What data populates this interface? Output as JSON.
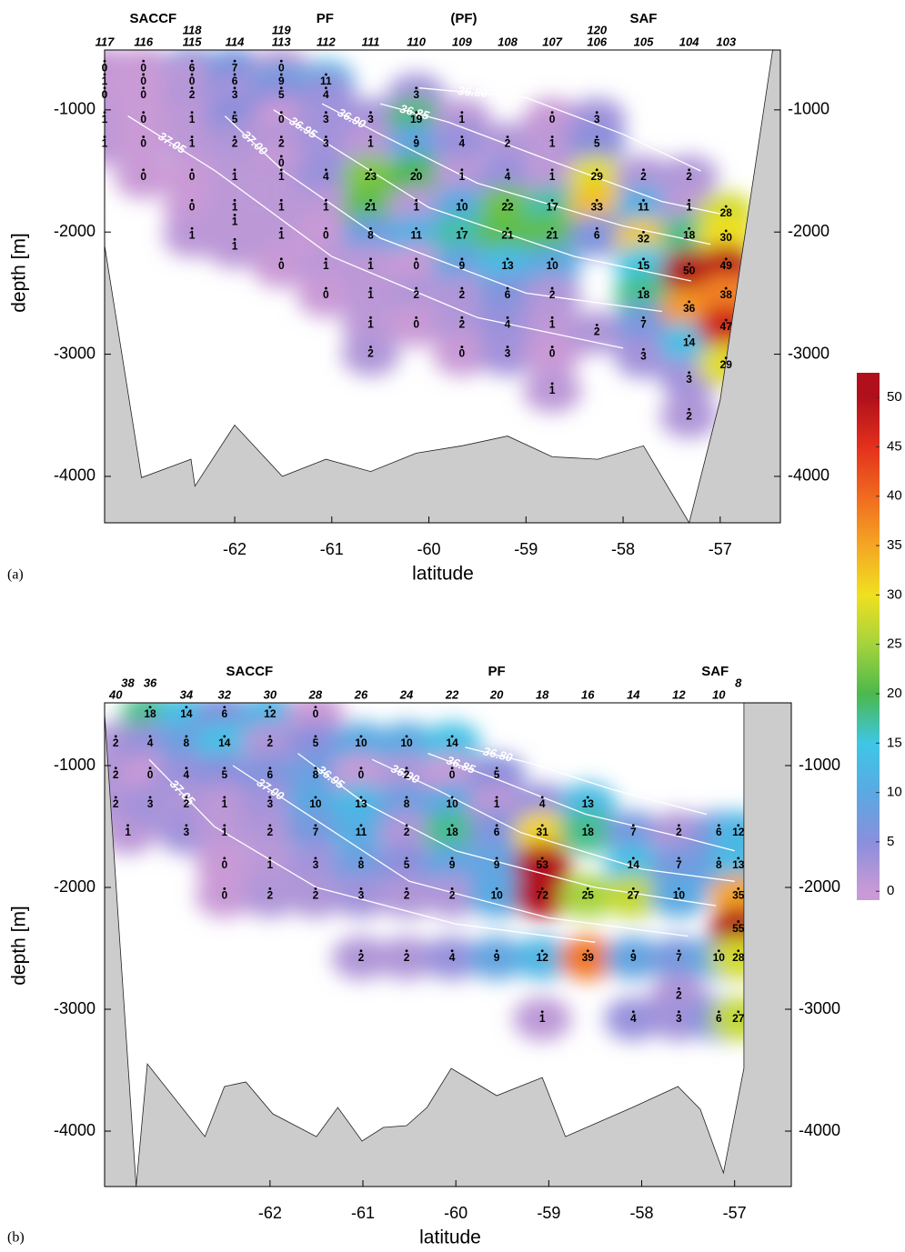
{
  "chart_data": [
    {
      "type": "section",
      "panel_label": "(a)",
      "x_label": "latitude",
      "y_label": "depth [m]",
      "xlim": [
        -63.34,
        -56.38
      ],
      "ylim": [
        -4380,
        -510
      ],
      "xticks": [
        -62,
        -61,
        -60,
        -59,
        -58,
        -57
      ],
      "yticks": [
        -1000,
        -2000,
        -3000,
        -4000
      ],
      "fronts": [
        {
          "label": "SACCF",
          "lat": -62.84
        },
        {
          "label": "PF",
          "lat": -61.07
        },
        {
          "label": "(PF)",
          "lat": -59.64
        },
        {
          "label": "SAF",
          "lat": -57.79
        }
      ],
      "stations": [
        {
          "name": "117",
          "lat": -63.34,
          "depths": [
            -660,
            -770,
            -880,
            -1080,
            -1280
          ],
          "values": [
            0,
            1,
            0,
            1,
            1
          ]
        },
        {
          "name": "116",
          "lat": -62.94,
          "depths": [
            -660,
            -770,
            -880,
            -1080,
            -1280,
            -1550
          ],
          "values": [
            0,
            0,
            0,
            0,
            0,
            0
          ]
        },
        {
          "name": "115",
          "lat": -62.44,
          "depths": [
            -660,
            -770,
            -880,
            -1080,
            -1280,
            -1550,
            -1800,
            -2030
          ],
          "values": [
            6,
            0,
            2,
            1,
            1,
            0,
            0,
            1
          ]
        },
        {
          "name": "118",
          "lat": -62.44
        },
        {
          "name": "114",
          "lat": -62.0,
          "depths": [
            -660,
            -770,
            -880,
            -1080,
            -1280,
            -1550,
            -1800,
            -1920,
            -2120
          ],
          "values": [
            7,
            6,
            3,
            5,
            2,
            1,
            1,
            1,
            1
          ]
        },
        {
          "name": "113",
          "lat": -61.52,
          "depths": [
            -660,
            -770,
            -880,
            -1080,
            -1280,
            -1440,
            -1550,
            -1800,
            -2030,
            -2280
          ],
          "values": [
            0,
            9,
            5,
            0,
            2,
            0,
            1,
            1,
            1,
            0
          ]
        },
        {
          "name": "119",
          "lat": -61.52
        },
        {
          "name": "112",
          "lat": -61.06,
          "depths": [
            -770,
            -880,
            -1080,
            -1280,
            -1550,
            -1800,
            -2030,
            -2280,
            -2520
          ],
          "values": [
            11,
            4,
            3,
            3,
            4,
            1,
            0,
            1,
            0
          ]
        },
        {
          "name": "111",
          "lat": -60.6,
          "depths": [
            -1080,
            -1280,
            -1550,
            -1800,
            -2030,
            -2280,
            -2520,
            -2760,
            -3000
          ],
          "values": [
            3,
            1,
            23,
            21,
            8,
            1,
            1,
            1,
            2
          ]
        },
        {
          "name": "110",
          "lat": -60.13,
          "depths": [
            -880,
            -1080,
            -1280,
            -1550,
            -1800,
            -2030,
            -2280,
            -2520,
            -2760
          ],
          "values": [
            3,
            19,
            9,
            20,
            1,
            11,
            0,
            2,
            0
          ]
        },
        {
          "name": "109",
          "lat": -59.66,
          "depths": [
            -1080,
            -1280,
            -1550,
            -1800,
            -2030,
            -2280,
            -2520,
            -2760,
            -3000
          ],
          "values": [
            1,
            4,
            1,
            10,
            17,
            9,
            2,
            2,
            0
          ]
        },
        {
          "name": "108",
          "lat": -59.19,
          "depths": [
            -1280,
            -1550,
            -1800,
            -2030,
            -2280,
            -2520,
            -2760,
            -3000
          ],
          "values": [
            2,
            4,
            22,
            21,
            13,
            6,
            4,
            3
          ]
        },
        {
          "name": "107",
          "lat": -58.73,
          "depths": [
            -1080,
            -1280,
            -1550,
            -1800,
            -2030,
            -2280,
            -2520,
            -2760,
            -3000,
            -3300
          ],
          "values": [
            0,
            1,
            1,
            17,
            21,
            10,
            2,
            1,
            0,
            1
          ]
        },
        {
          "name": "106",
          "lat": -58.27,
          "depths": [
            -1080,
            -1280,
            -1550,
            -1800,
            -2030,
            -2820
          ],
          "values": [
            3,
            5,
            29,
            33,
            6,
            2
          ]
        },
        {
          "name": "120",
          "lat": -58.27
        },
        {
          "name": "105",
          "lat": -57.79,
          "depths": [
            -1550,
            -1800,
            -2060,
            -2280,
            -2520,
            -2760,
            -3020
          ],
          "values": [
            2,
            11,
            32,
            15,
            18,
            7,
            3
          ]
        },
        {
          "name": "104",
          "lat": -57.32,
          "depths": [
            -1550,
            -1800,
            -2030,
            -2320,
            -2630,
            -2910,
            -3210,
            -3510
          ],
          "values": [
            2,
            1,
            18,
            50,
            36,
            14,
            3,
            2
          ]
        },
        {
          "name": "103",
          "lat": -56.94,
          "depths": [
            -1850,
            -2050,
            -2280,
            -2520,
            -2780,
            -3090
          ],
          "values": [
            28,
            30,
            49,
            38,
            47,
            29
          ]
        }
      ],
      "isopycnals": [
        {
          "label": "37.05",
          "lat": [
            -63.1,
            -62.2,
            -61.0,
            -59.5,
            -58.0
          ],
          "depth": [
            -1050,
            -1500,
            -2200,
            -2700,
            -2950
          ]
        },
        {
          "label": "37.00",
          "lat": [
            -62.1,
            -61.5,
            -60.5,
            -59.0,
            -57.6
          ],
          "depth": [
            -1050,
            -1500,
            -2050,
            -2500,
            -2650
          ]
        },
        {
          "label": "36.95",
          "lat": [
            -61.6,
            -61.0,
            -60.0,
            -58.5,
            -57.3
          ],
          "depth": [
            -1000,
            -1300,
            -1800,
            -2200,
            -2400
          ]
        },
        {
          "label": "36.90",
          "lat": [
            -61.1,
            -60.5,
            -59.5,
            -58.0,
            -57.1
          ],
          "depth": [
            -950,
            -1200,
            -1600,
            -1950,
            -2100
          ]
        },
        {
          "label": "36.85",
          "lat": [
            -60.5,
            -59.8,
            -58.8,
            -57.6,
            -57.0
          ],
          "depth": [
            -950,
            -1100,
            -1400,
            -1750,
            -1850
          ]
        },
        {
          "label": "36.80",
          "lat": [
            -60.1,
            -59.0,
            -58.0,
            -57.2
          ],
          "depth": [
            -820,
            -900,
            -1200,
            -1500
          ]
        }
      ],
      "bottom": {
        "lat": [
          -63.34,
          -62.96,
          -62.45,
          -62.41,
          -62.0,
          -61.51,
          -61.06,
          -60.6,
          -60.13,
          -59.66,
          -59.19,
          -58.73,
          -58.26,
          -57.79,
          -57.32,
          -57.0,
          -56.46
        ],
        "depth": [
          -2110,
          -4010,
          -3860,
          -4080,
          -3580,
          -4000,
          -3860,
          -3960,
          -3810,
          -3750,
          -3670,
          -3840,
          -3860,
          -3750,
          -4380,
          -3375,
          -510
        ]
      },
      "bottom_color": "#cccccc"
    },
    {
      "type": "section",
      "panel_label": "(b)",
      "x_label": "latitude",
      "y_label": "depth [m]",
      "xlim": [
        -63.78,
        -56.39
      ],
      "ylim": [
        -4455,
        -485
      ],
      "xticks": [
        -62,
        -61,
        -60,
        -59,
        -58,
        -57
      ],
      "yticks": [
        -1000,
        -2000,
        -3000,
        -4000
      ],
      "fronts": [
        {
          "label": "SACCF",
          "lat": -62.22
        },
        {
          "label": "PF",
          "lat": -59.56
        },
        {
          "label": "SAF",
          "lat": -57.21
        }
      ],
      "stations": [
        {
          "name": "40",
          "lat": -63.66,
          "depths": [
            -820,
            -1080,
            -1320
          ],
          "values": [
            2,
            2,
            2
          ]
        },
        {
          "name": "38",
          "lat": -63.53,
          "depths": [
            -1550
          ],
          "values": [
            1
          ]
        },
        {
          "name": "36",
          "lat": -63.29,
          "depths": [
            -580,
            -820,
            -1080,
            -1320
          ],
          "values": [
            18,
            4,
            0,
            3
          ]
        },
        {
          "name": "34",
          "lat": -62.9,
          "depths": [
            -580,
            -820,
            -1080,
            -1320,
            -1550
          ],
          "values": [
            14,
            8,
            4,
            2,
            3
          ]
        },
        {
          "name": "32",
          "lat": -62.49,
          "depths": [
            -580,
            -820,
            -1080,
            -1320,
            -1550,
            -1820,
            -2070
          ],
          "values": [
            6,
            14,
            5,
            1,
            1,
            0,
            0
          ]
        },
        {
          "name": "30",
          "lat": -62.0,
          "depths": [
            -580,
            -820,
            -1080,
            -1320,
            -1550,
            -1820,
            -2070
          ],
          "values": [
            12,
            2,
            6,
            3,
            2,
            1,
            2
          ]
        },
        {
          "name": "28",
          "lat": -61.51,
          "depths": [
            -580,
            -820,
            -1080,
            -1320,
            -1550,
            -1820,
            -2070
          ],
          "values": [
            0,
            5,
            8,
            10,
            7,
            3,
            2
          ]
        },
        {
          "name": "26",
          "lat": -61.02,
          "depths": [
            -820,
            -1080,
            -1320,
            -1550,
            -1820,
            -2070,
            -2580
          ],
          "values": [
            10,
            0,
            13,
            11,
            8,
            3,
            2
          ]
        },
        {
          "name": "24",
          "lat": -60.53,
          "depths": [
            -820,
            -1080,
            -1320,
            -1550,
            -1820,
            -2070,
            -2580
          ],
          "values": [
            10,
            2,
            8,
            2,
            5,
            2,
            2
          ]
        },
        {
          "name": "22",
          "lat": -60.04,
          "depths": [
            -820,
            -1080,
            -1320,
            -1550,
            -1820,
            -2070,
            -2580
          ],
          "values": [
            14,
            0,
            10,
            18,
            9,
            2,
            4
          ]
        },
        {
          "name": "20",
          "lat": -59.56,
          "depths": [
            -1080,
            -1320,
            -1550,
            -1820,
            -2070,
            -2580
          ],
          "values": [
            5,
            1,
            6,
            9,
            10,
            9
          ]
        },
        {
          "name": "18",
          "lat": -59.07,
          "depths": [
            -1320,
            -1550,
            -1820,
            -2070,
            -2580,
            -3080
          ],
          "values": [
            4,
            31,
            53,
            72,
            12,
            1
          ]
        },
        {
          "name": "16",
          "lat": -58.58,
          "depths": [
            -1320,
            -1550,
            -2070,
            -2580
          ],
          "values": [
            13,
            18,
            25,
            39
          ]
        },
        {
          "name": "14",
          "lat": -58.09,
          "depths": [
            -1550,
            -1820,
            -2070,
            -2580,
            -3080
          ],
          "values": [
            7,
            14,
            27,
            9,
            4
          ]
        },
        {
          "name": "12",
          "lat": -57.6,
          "depths": [
            -1550,
            -1820,
            -2070,
            -2580,
            -2890,
            -3080
          ],
          "values": [
            2,
            7,
            10,
            7,
            2,
            3
          ]
        },
        {
          "name": "10",
          "lat": -57.17,
          "depths": [
            -1550,
            -1820,
            -2580,
            -3080
          ],
          "values": [
            6,
            8,
            10,
            6
          ]
        },
        {
          "name": "8",
          "lat": -56.96,
          "depths": [
            -1550,
            -1820,
            -2070,
            -2340,
            -2580,
            -3080
          ],
          "values": [
            12,
            13,
            35,
            55,
            28,
            27
          ]
        }
      ],
      "isopycnals": [
        {
          "label": "37.05",
          "lat": [
            -63.3,
            -62.6,
            -61.5,
            -60.0,
            -58.5
          ],
          "depth": [
            -950,
            -1500,
            -2000,
            -2300,
            -2450
          ]
        },
        {
          "label": "37.00",
          "lat": [
            -62.4,
            -61.6,
            -60.5,
            -59.0,
            -57.5
          ],
          "depth": [
            -1000,
            -1400,
            -1950,
            -2250,
            -2400
          ]
        },
        {
          "label": "36.95",
          "lat": [
            -61.7,
            -61.0,
            -60.0,
            -58.5,
            -57.2
          ],
          "depth": [
            -900,
            -1300,
            -1700,
            -2000,
            -2150
          ]
        },
        {
          "label": "36.90",
          "lat": [
            -60.9,
            -60.2,
            -59.3,
            -58.0,
            -57.0
          ],
          "depth": [
            -950,
            -1200,
            -1550,
            -1850,
            -1950
          ]
        },
        {
          "label": "36.85",
          "lat": [
            -60.3,
            -59.6,
            -58.6,
            -57.5,
            -57.0
          ],
          "depth": [
            -900,
            -1100,
            -1400,
            -1600,
            -1700
          ]
        },
        {
          "label": "36.80",
          "lat": [
            -59.9,
            -59.2,
            -58.3,
            -57.3
          ],
          "depth": [
            -850,
            -980,
            -1200,
            -1400
          ]
        }
      ],
      "bottom": {
        "lat": [
          -63.78,
          -63.44,
          -63.32,
          -62.7,
          -62.49,
          -62.26,
          -61.97,
          -61.5,
          -61.27,
          -61.01,
          -60.78,
          -60.53,
          -60.31,
          -60.05,
          -59.56,
          -59.07,
          -58.82,
          -58.1,
          -57.61,
          -57.37,
          -57.12,
          -56.9,
          -56.9
        ],
        "depth": [
          -575,
          -4455,
          -3448,
          -4045,
          -3634,
          -3597,
          -3858,
          -4045,
          -3806,
          -4082,
          -3970,
          -3955,
          -3806,
          -3485,
          -3709,
          -3560,
          -4045,
          -3806,
          -3634,
          -3821,
          -4343,
          -3485,
          -485
        ]
      },
      "bottom_color": "#cccccc"
    },
    {
      "type": "colorbar",
      "ylim": [
        -0.9,
        52.5
      ],
      "yticks": [
        0,
        5,
        10,
        15,
        20,
        25,
        30,
        35,
        40,
        45,
        50
      ],
      "colors": [
        "#c99ad6",
        "#8a8fdc",
        "#5aa9e2",
        "#3fc6e6",
        "#4cb84c",
        "#a5d33c",
        "#f0e020",
        "#f5a623",
        "#f06a20",
        "#e3301c",
        "#b0101c"
      ]
    }
  ]
}
